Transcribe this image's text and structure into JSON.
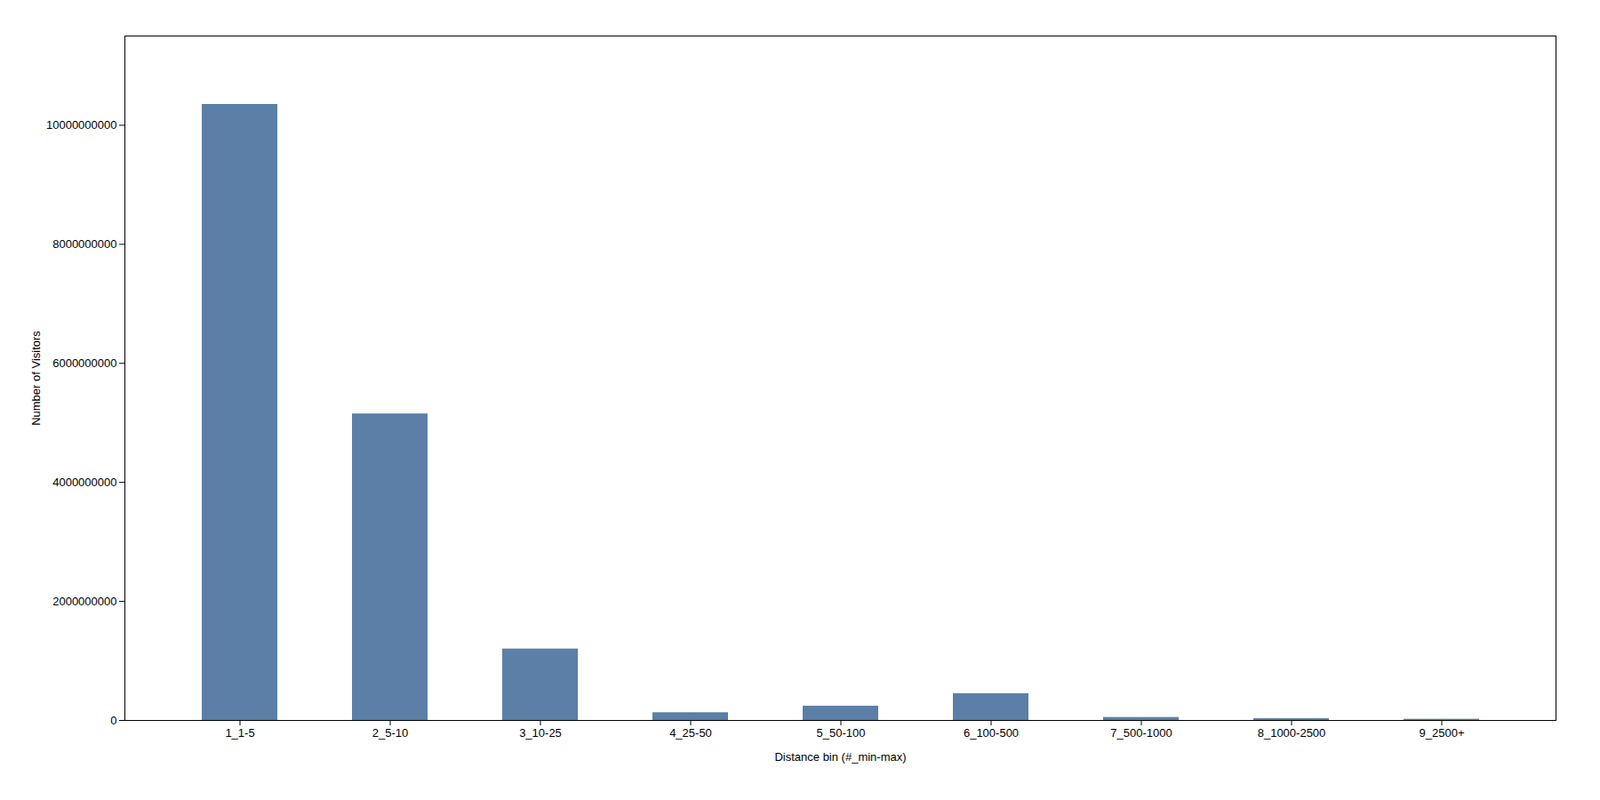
{
  "chart_data": {
    "type": "bar",
    "categories": [
      "1_1-5",
      "2_5-10",
      "3_10-25",
      "4_25-50",
      "5_50-100",
      "6_100-500",
      "7_500-1000",
      "8_1000-2500",
      "9_2500+"
    ],
    "values": [
      10350000000.0,
      5150000000.0,
      1200000000.0,
      130000000.0,
      240000000.0,
      450000000.0,
      50000000.0,
      30000000.0,
      20000000.0
    ],
    "color": "#5b7fa6",
    "xlabel": "Distance bin (#_min-max)",
    "ylabel": "Number of Visitors",
    "ylim": [
      0,
      11500000000.0
    ],
    "yticks": [
      0,
      2000000000,
      4000000000,
      6000000000,
      8000000000,
      10000000000
    ],
    "grid": false
  }
}
